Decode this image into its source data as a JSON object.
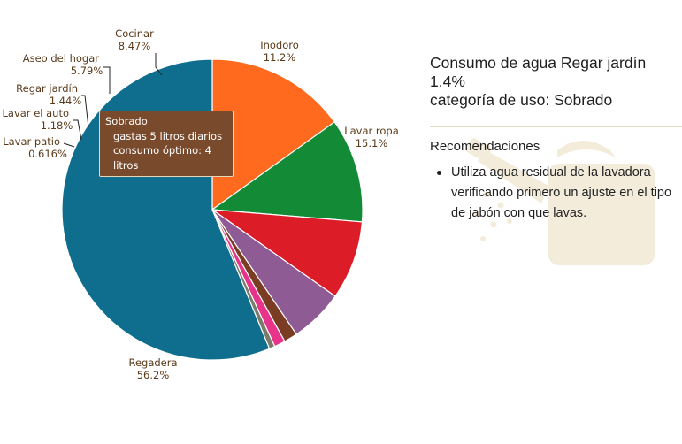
{
  "chart_data": {
    "type": "pie",
    "slices": [
      {
        "name": "Lavar ropa",
        "value": 15.1,
        "label": "15.1%",
        "color": "#ff6a1f"
      },
      {
        "name": "Inodoro",
        "value": 11.2,
        "label": "11.2%",
        "color": "#138a36"
      },
      {
        "name": "Cocinar",
        "value": 8.47,
        "label": "8.47%",
        "color": "#dc1c27"
      },
      {
        "name": "Aseo del hogar",
        "value": 5.79,
        "label": "5.79%",
        "color": "#8e5b95"
      },
      {
        "name": "Regar jardín",
        "value": 1.44,
        "label": "1.44%",
        "color": "#7a3c23"
      },
      {
        "name": "Lavar el auto",
        "value": 1.18,
        "label": "1.18%",
        "color": "#e7338a"
      },
      {
        "name": "Lavar patio",
        "value": 0.616,
        "label": "0.616%",
        "color": "#7b7b6c"
      },
      {
        "name": "Regadera",
        "value": 56.2,
        "label": "56.2%",
        "color": "#0f6e8e"
      }
    ]
  },
  "tooltip": {
    "line1": "Sobrado",
    "line2": "gastas 5 litros diarios",
    "line3": "consumo óptimo: 4 litros"
  },
  "panel": {
    "title_line1": "Consumo de agua Regar jardín",
    "title_line2": "1.4%",
    "title_line3": "categoría de uso: Sobrado",
    "recommendations_heading": "Recomendaciones",
    "recommendations": [
      "Utiliza agua residual de la lavadora verificando primero un ajuste en el tipo de jabón con que lavas."
    ]
  },
  "colors": {
    "watermark": "#f3ead8"
  }
}
